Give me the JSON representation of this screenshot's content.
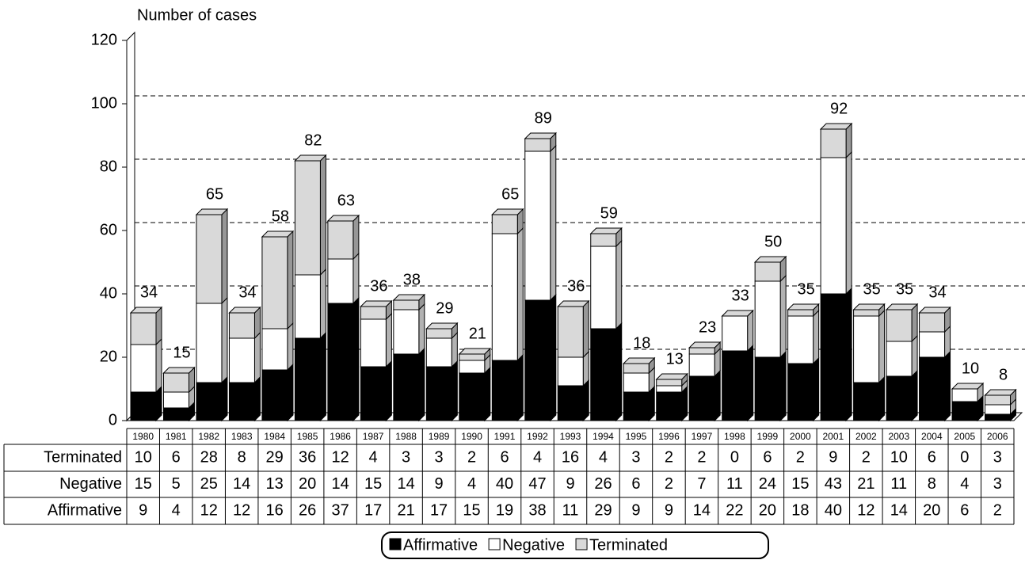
{
  "chart_data": {
    "type": "stacked_bar_3d",
    "y_label": "Number of cases",
    "categories": [
      "1980",
      "1981",
      "1982",
      "1983",
      "1984",
      "1985",
      "1986",
      "1987",
      "1988",
      "1989",
      "1990",
      "1991",
      "1992",
      "1993",
      "1994",
      "1995",
      "1996",
      "1997",
      "1998",
      "1999",
      "2000",
      "2001",
      "2002",
      "2003",
      "2004",
      "2005",
      "2006"
    ],
    "series": [
      {
        "name": "Affirmative",
        "color": "#000000",
        "values": [
          9,
          4,
          12,
          12,
          16,
          26,
          37,
          17,
          21,
          17,
          15,
          19,
          38,
          11,
          29,
          9,
          9,
          14,
          22,
          20,
          18,
          40,
          12,
          14,
          20,
          6,
          2
        ]
      },
      {
        "name": "Negative",
        "color": "#ffffff",
        "values": [
          15,
          5,
          25,
          14,
          13,
          20,
          14,
          15,
          14,
          9,
          4,
          40,
          47,
          9,
          26,
          6,
          2,
          7,
          11,
          24,
          15,
          43,
          21,
          11,
          8,
          4,
          3
        ]
      },
      {
        "name": "Terminated",
        "color": "#d9d9d9",
        "values": [
          10,
          6,
          28,
          8,
          29,
          36,
          12,
          4,
          3,
          3,
          2,
          6,
          4,
          16,
          4,
          3,
          2,
          2,
          0,
          6,
          2,
          9,
          2,
          10,
          6,
          0,
          3
        ]
      }
    ],
    "totals": [
      34,
      15,
      65,
      34,
      58,
      82,
      63,
      36,
      38,
      29,
      21,
      65,
      89,
      36,
      59,
      18,
      13,
      23,
      33,
      50,
      35,
      92,
      35,
      35,
      34,
      10,
      8
    ],
    "ylim": [
      0,
      120
    ],
    "yticks": [
      0,
      20,
      40,
      60,
      80,
      100,
      120
    ],
    "grid": true,
    "legend": "bottom"
  }
}
